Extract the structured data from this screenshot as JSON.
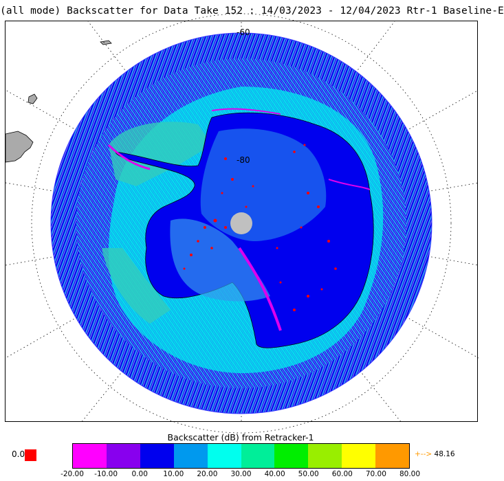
{
  "title": "(all mode) Backscatter for Data Take 152 : 14/03/2023 - 12/04/2023 Rtr-1 Baseline-E",
  "map": {
    "projection": "south polar stereographic",
    "latitude_labels": [
      "-60",
      "-80"
    ],
    "colors": {
      "ocean_blue": "#0000ee",
      "mid_blue": "#1a5cf0",
      "light_blue": "#3399ee",
      "cyan": "#00ffee",
      "teal": "#33ccbb",
      "magenta": "#dd00ee",
      "red": "#ff0000",
      "land_gray": "#aaaaaa",
      "pole_hole": "#c0c0c0"
    }
  },
  "legend": {
    "title": "Backscatter (dB) from Retracker-1",
    "ticks": [
      "-20.00",
      "-10.00",
      "0.00",
      "10.00",
      "20.00",
      "30.00",
      "40.00",
      "50.00",
      "60.00",
      "70.00",
      "80.00"
    ],
    "colors": [
      "#ff00ff",
      "#8800ee",
      "#0000ee",
      "#0099ee",
      "#00ffee",
      "#00ee99",
      "#00ee00",
      "#99ee00",
      "#ffff00",
      "#ff9900"
    ],
    "low_value": "0.0",
    "low_color": "#ff0000",
    "high_arrow": "+-->",
    "high_value": "48.16"
  }
}
